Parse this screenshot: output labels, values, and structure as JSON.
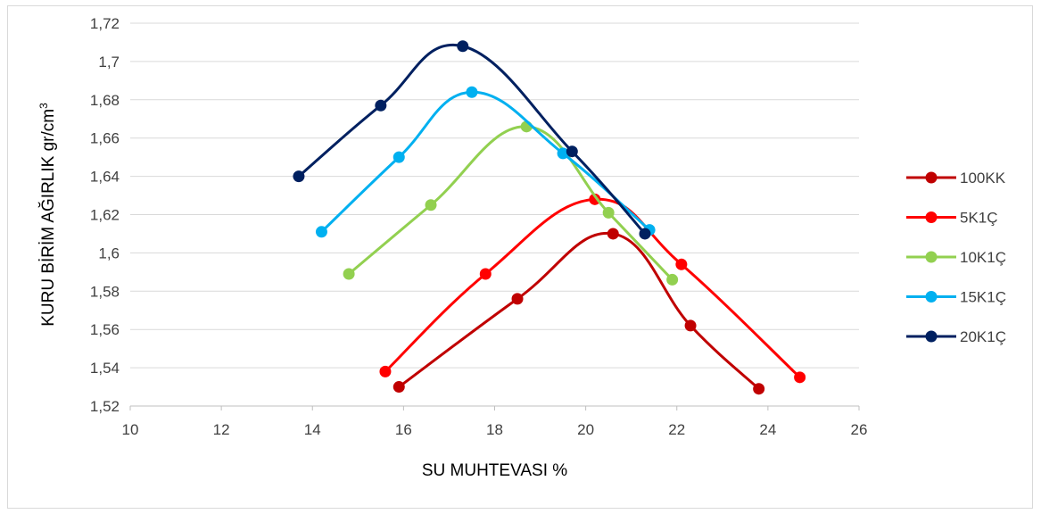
{
  "chart_data": {
    "type": "line",
    "xlabel": "SU MUHTEVASI %",
    "ylabel": "KURU BİRİM AĞIRLIK gr/cm",
    "ylabel_sup": "3",
    "xlim": [
      10,
      26
    ],
    "ylim": [
      1.52,
      1.72
    ],
    "xticks": [
      10,
      12,
      14,
      16,
      18,
      20,
      22,
      24,
      26
    ],
    "xtick_labels": [
      "10",
      "12",
      "14",
      "16",
      "18",
      "20",
      "22",
      "24",
      "26"
    ],
    "yticks": [
      1.52,
      1.54,
      1.56,
      1.58,
      1.6,
      1.62,
      1.64,
      1.66,
      1.68,
      1.7,
      1.72
    ],
    "ytick_labels": [
      "1,52",
      "1,54",
      "1,56",
      "1,58",
      "1,6",
      "1,62",
      "1,64",
      "1,66",
      "1,68",
      "1,7",
      "1,72"
    ],
    "grid": "horizontal",
    "legend_position": "right",
    "smooth": true,
    "series": [
      {
        "name": "100KK",
        "color": "#c00000",
        "x": [
          15.9,
          18.5,
          20.6,
          22.3,
          23.8
        ],
        "y": [
          1.53,
          1.576,
          1.61,
          1.562,
          1.529
        ]
      },
      {
        "name": "5K1Ç",
        "color": "#ff0000",
        "x": [
          15.6,
          17.8,
          20.2,
          22.1,
          24.7
        ],
        "y": [
          1.538,
          1.589,
          1.628,
          1.594,
          1.535
        ]
      },
      {
        "name": "10K1Ç",
        "color": "#92d050",
        "x": [
          14.8,
          16.6,
          18.7,
          20.5,
          21.9
        ],
        "y": [
          1.589,
          1.625,
          1.666,
          1.621,
          1.586
        ]
      },
      {
        "name": "15K1Ç",
        "color": "#00b0f0",
        "x": [
          14.2,
          15.9,
          17.5,
          19.5,
          21.4
        ],
        "y": [
          1.611,
          1.65,
          1.684,
          1.652,
          1.612
        ]
      },
      {
        "name": "20K1Ç",
        "color": "#002060",
        "x": [
          13.7,
          15.5,
          17.3,
          19.7,
          21.3
        ],
        "y": [
          1.64,
          1.677,
          1.708,
          1.653,
          1.61
        ]
      }
    ]
  }
}
